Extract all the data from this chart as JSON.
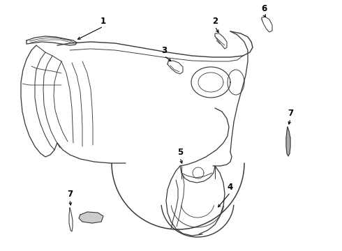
{
  "bg_color": "#ffffff",
  "lc": "#3a3a3a",
  "label_color": "#000000",
  "lw": 0.85,
  "figsize": [
    4.9,
    3.6
  ],
  "dpi": 100,
  "xlim": [
    0,
    490
  ],
  "ylim": [
    0,
    360
  ]
}
